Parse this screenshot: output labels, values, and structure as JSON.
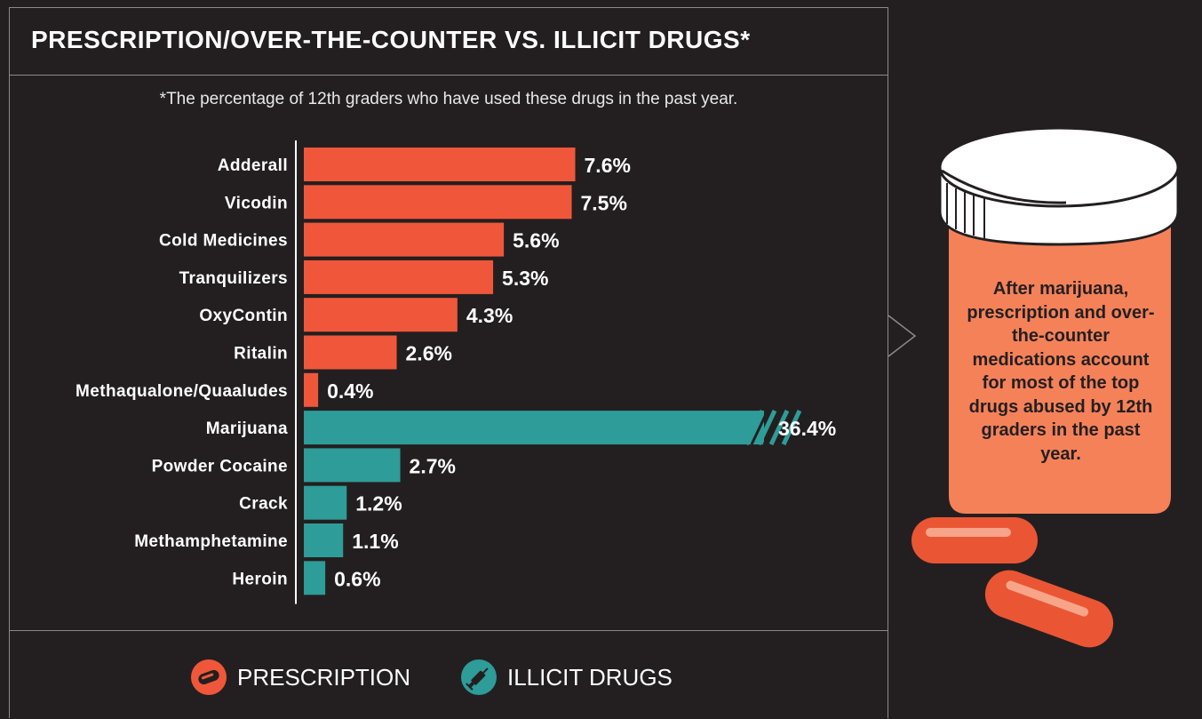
{
  "title": "PRESCRIPTION/OVER-THE-COUNTER VS. ILLICIT DRUGS*",
  "subtitle": "*The percentage of 12th graders who have used these drugs in the past year.",
  "colors": {
    "prescription": "#f0573a",
    "illicit": "#2e9c98",
    "background": "#231f20",
    "bottle": "#f58159",
    "pill": "#ea5634"
  },
  "chart_data": {
    "type": "bar",
    "orientation": "horizontal",
    "categories": [
      "Adderall",
      "Vicodin",
      "Cold Medicines",
      "Tranquilizers",
      "OxyContin",
      "Ritalin",
      "Methaqualone/Quaaludes",
      "Marijuana",
      "Powder Cocaine",
      "Crack",
      "Methamphetamine",
      "Heroin"
    ],
    "values": [
      7.6,
      7.5,
      5.6,
      5.3,
      4.3,
      2.6,
      0.4,
      36.4,
      2.7,
      1.2,
      1.1,
      0.6
    ],
    "value_labels": [
      "7.6%",
      "7.5%",
      "5.6%",
      "5.3%",
      "4.3%",
      "2.6%",
      "0.4%",
      "36.4%",
      "2.7%",
      "1.2%",
      "1.1%",
      "0.6%"
    ],
    "groups": [
      "prescription",
      "prescription",
      "prescription",
      "prescription",
      "prescription",
      "prescription",
      "prescription",
      "illicit",
      "illicit",
      "illicit",
      "illicit",
      "illicit"
    ],
    "axis_break": {
      "category": "Marijuana"
    },
    "grid": false
  },
  "legend": {
    "prescription_label": "PRESCRIPTION",
    "illicit_label": "ILLICIT DRUGS",
    "prescription_icon": "pill-icon",
    "illicit_icon": "syringe-icon"
  },
  "callout": {
    "text": "After marijuana, prescription and over-the-counter medications account for most of the top drugs abused by 12th graders in the past year.",
    "bottle_icon": "pill-bottle-icon",
    "pills_icon": "pills-icon"
  }
}
